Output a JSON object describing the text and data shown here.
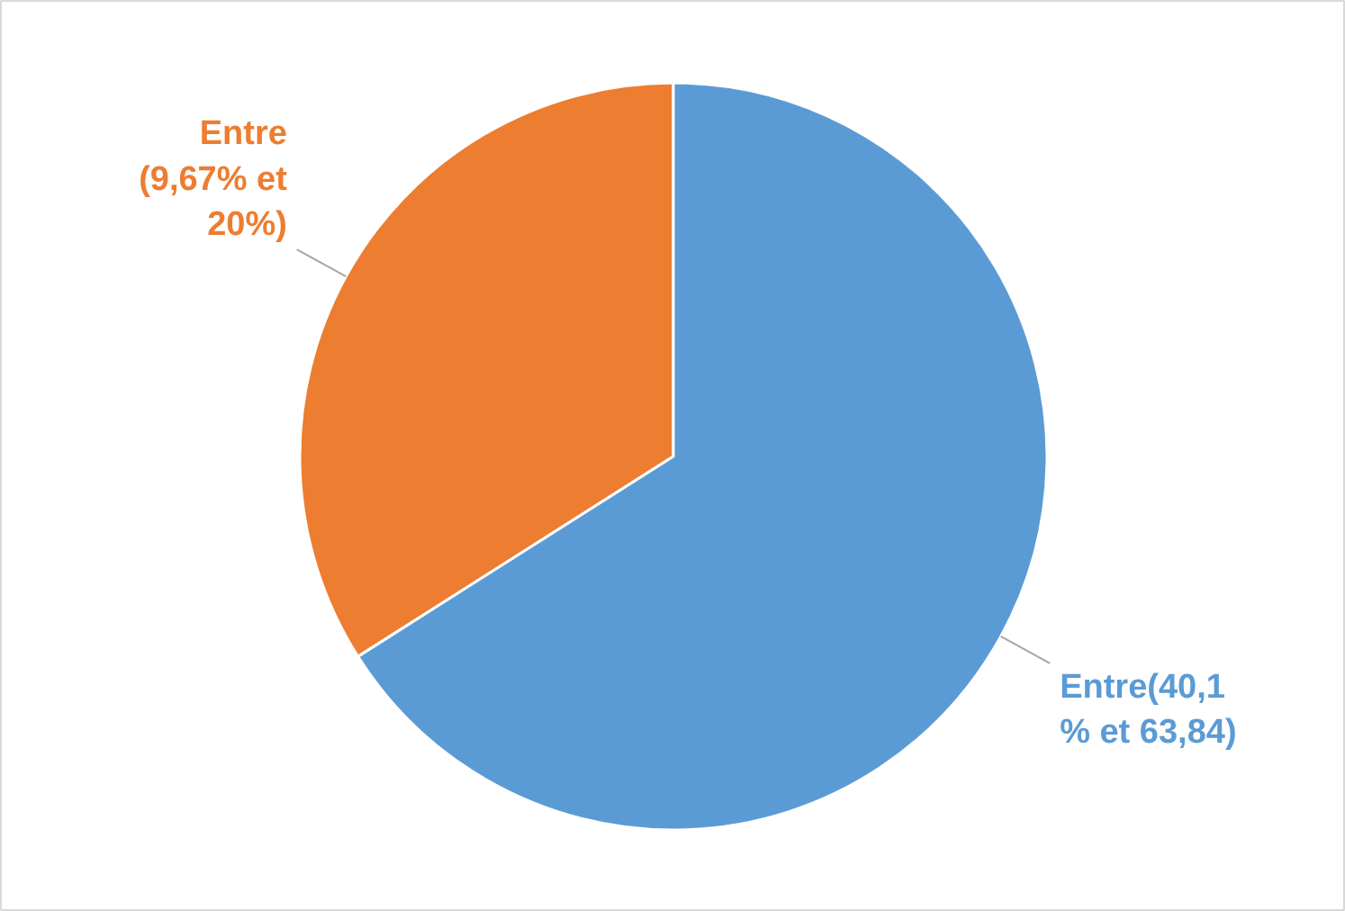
{
  "chart_data": {
    "type": "pie",
    "categories": [
      "Entre\n(9,67% et\n20%)",
      "Entre(40,1\n% et 63,84)"
    ],
    "values": [
      34,
      66
    ],
    "colors": [
      "#ed7d31",
      "#5b9bd5"
    ]
  }
}
